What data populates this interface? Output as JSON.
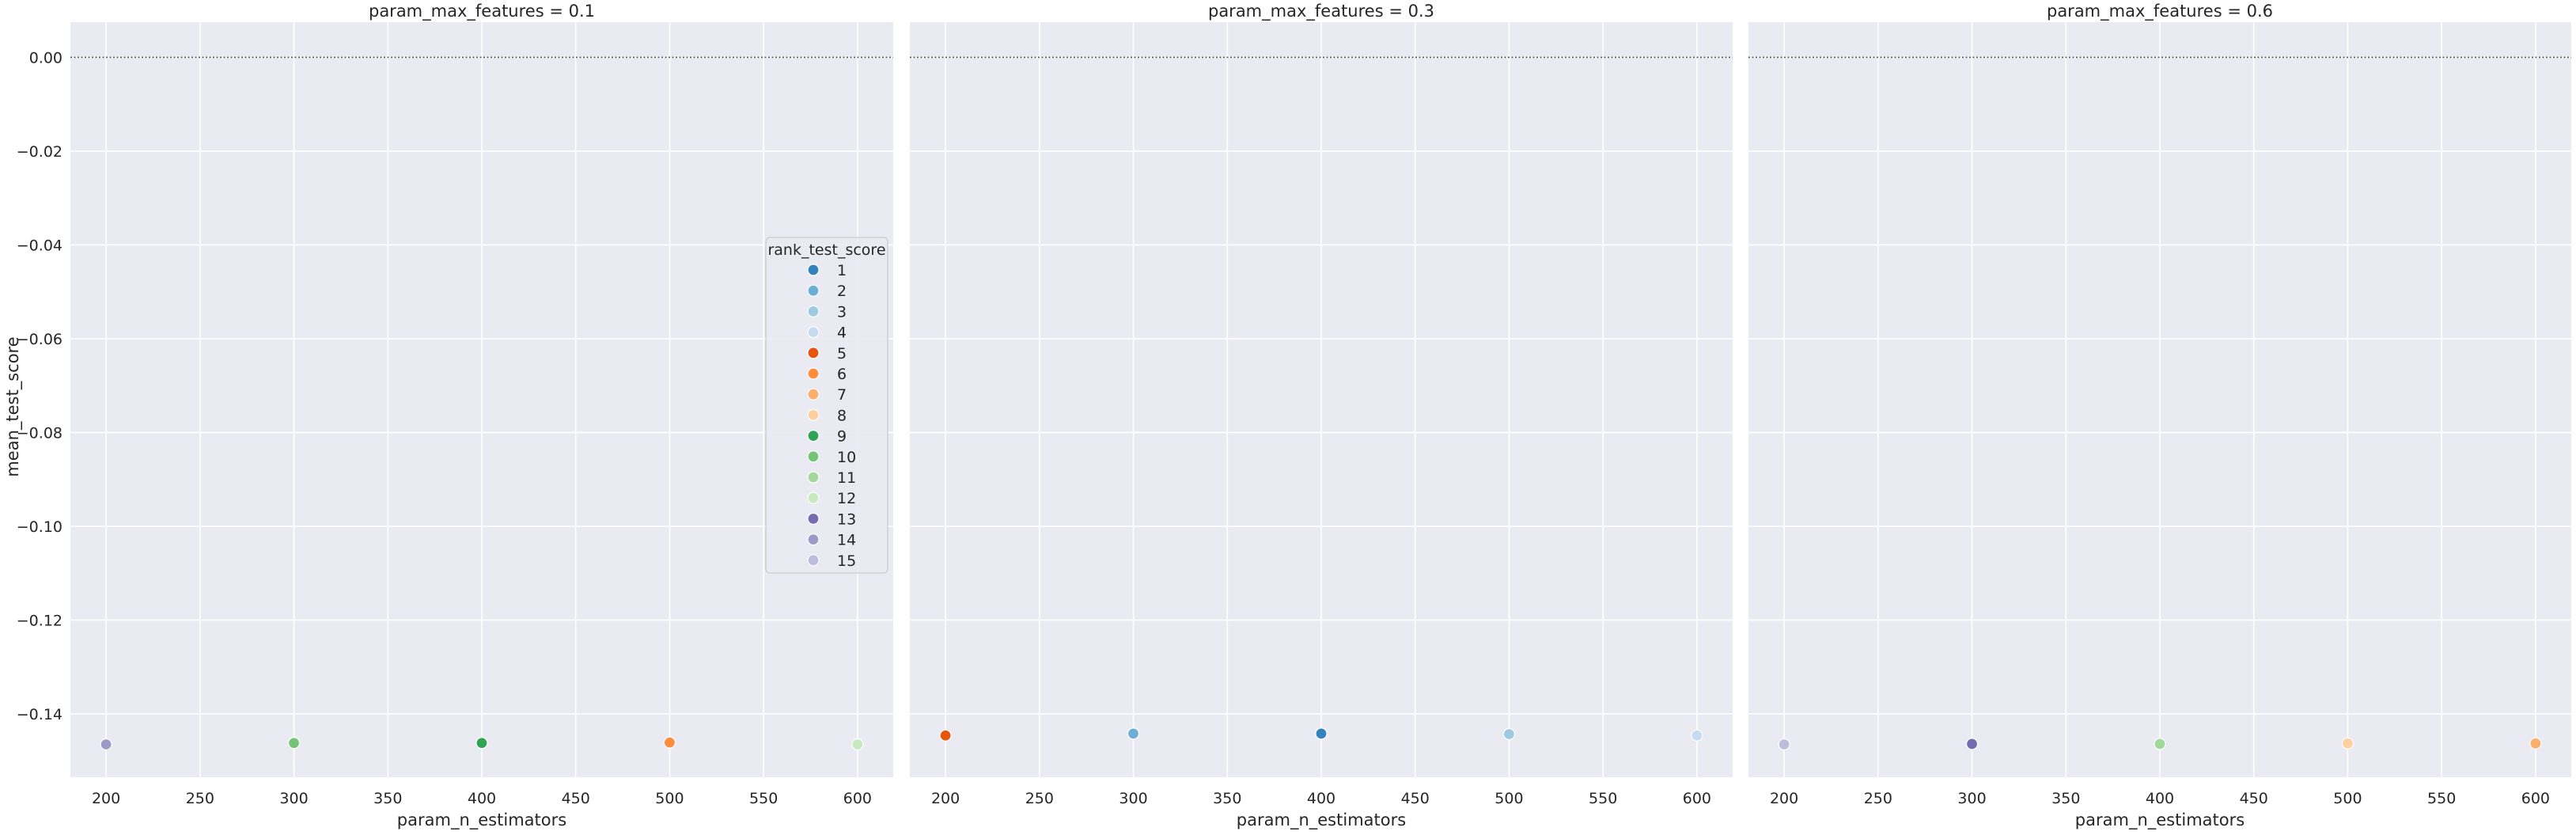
{
  "chart_data": {
    "type": "scatter",
    "xlabel": "param_n_estimators",
    "ylabel": "mean_test_score",
    "xlim": [
      181,
      619
    ],
    "ylim": [
      -0.1535,
      0.0075
    ],
    "x_ticks": [
      "200",
      "250",
      "300",
      "350",
      "400",
      "450",
      "500",
      "550",
      "600"
    ],
    "y_ticks": [
      "0.00",
      "−0.02",
      "−0.04",
      "−0.06",
      "−0.08",
      "−0.10",
      "−0.12",
      "−0.14"
    ],
    "reference_line_y": 0,
    "grid": true,
    "legend": {
      "title": "rank_test_score",
      "placement": "right of first panel",
      "entries": [
        {
          "label": "1",
          "color": "#3182bd"
        },
        {
          "label": "2",
          "color": "#6baed6"
        },
        {
          "label": "3",
          "color": "#9ecae1"
        },
        {
          "label": "4",
          "color": "#c6dbef"
        },
        {
          "label": "5",
          "color": "#e6550d"
        },
        {
          "label": "6",
          "color": "#fd8d3c"
        },
        {
          "label": "7",
          "color": "#fdae6b"
        },
        {
          "label": "8",
          "color": "#fdd0a2"
        },
        {
          "label": "9",
          "color": "#31a354"
        },
        {
          "label": "10",
          "color": "#74c476"
        },
        {
          "label": "11",
          "color": "#a1d99b"
        },
        {
          "label": "12",
          "color": "#c7e9c0"
        },
        {
          "label": "13",
          "color": "#756bb1"
        },
        {
          "label": "14",
          "color": "#9e9ac8"
        },
        {
          "label": "15",
          "color": "#bcbddc"
        }
      ]
    },
    "panels": [
      {
        "title": "param_max_features = 0.1",
        "points": [
          {
            "x": 200,
            "y": -0.1465,
            "rank": 14
          },
          {
            "x": 300,
            "y": -0.1462,
            "rank": 10
          },
          {
            "x": 400,
            "y": -0.1462,
            "rank": 9
          },
          {
            "x": 500,
            "y": -0.1461,
            "rank": 6
          },
          {
            "x": 600,
            "y": -0.1465,
            "rank": 12
          }
        ]
      },
      {
        "title": "param_max_features = 0.3",
        "points": [
          {
            "x": 200,
            "y": -0.1446,
            "rank": 5
          },
          {
            "x": 300,
            "y": -0.1442,
            "rank": 2
          },
          {
            "x": 400,
            "y": -0.1442,
            "rank": 1
          },
          {
            "x": 500,
            "y": -0.1443,
            "rank": 3
          },
          {
            "x": 600,
            "y": -0.1446,
            "rank": 4
          }
        ]
      },
      {
        "title": "param_max_features = 0.6",
        "points": [
          {
            "x": 200,
            "y": -0.1465,
            "rank": 15
          },
          {
            "x": 300,
            "y": -0.1464,
            "rank": 13
          },
          {
            "x": 400,
            "y": -0.1464,
            "rank": 11
          },
          {
            "x": 500,
            "y": -0.1463,
            "rank": 8
          },
          {
            "x": 600,
            "y": -0.1463,
            "rank": 7
          }
        ]
      }
    ]
  }
}
